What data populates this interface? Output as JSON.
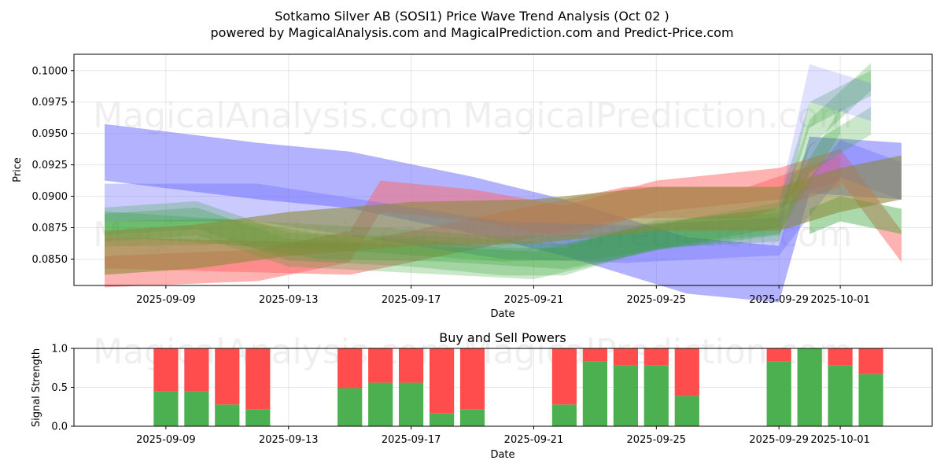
{
  "title_line1": "Sotkamo Silver AB (SOSI1) Price Wave Trend Analysis (Oct 02 )",
  "title_line2": "powered by MagicalAnalysis.com and MagicalPrediction.com and Predict-Price.com",
  "watermarks": [
    "MagicalAnalysis.com",
    "MagicalPrediction.com"
  ],
  "colors": {
    "blue": "#6666ff",
    "green": "#2ca02c",
    "red": "#ff6666",
    "olive": "#8b8b3c",
    "buy": "#4caf50",
    "sell": "#ff4c4c"
  },
  "chart_data": [
    {
      "type": "area",
      "xlabel": "Date",
      "ylabel": "Price",
      "x_ticks": [
        "2025-09-09",
        "2025-09-13",
        "2025-09-17",
        "2025-09-21",
        "2025-09-25",
        "2025-09-29",
        "2025-10-01"
      ],
      "xlim": [
        "2025-09-06",
        "2025-10-04"
      ],
      "y_ticks": [
        "0.0850",
        "0.0875",
        "0.0900",
        "0.0925",
        "0.0950",
        "0.0975",
        "0.1000"
      ],
      "ylim": [
        0.0829,
        0.1013
      ],
      "grid": true,
      "bands": [
        {
          "color": "blue",
          "opacity": 0.5,
          "points": [
            [
              "2025-09-07",
              0.0935
            ],
            [
              "2025-09-12",
              0.092
            ],
            [
              "2025-09-15",
              0.0913
            ],
            [
              "2025-09-19",
              0.0893
            ],
            [
              "2025-09-22",
              0.0875
            ],
            [
              "2025-09-26",
              0.0845
            ],
            [
              "2025-09-29",
              0.0838
            ],
            [
              "2025-09-30",
              0.0925
            ],
            [
              "2025-10-03",
              0.092
            ]
          ],
          "width": 0.0045
        },
        {
          "color": "red",
          "opacity": 0.5,
          "points": [
            [
              "2025-09-07",
              0.084
            ],
            [
              "2025-09-12",
              0.0845
            ],
            [
              "2025-09-15",
              0.086
            ],
            [
              "2025-09-16",
              0.09
            ],
            [
              "2025-09-19",
              0.0893
            ],
            [
              "2025-09-22",
              0.088
            ],
            [
              "2025-09-25",
              0.09
            ],
            [
              "2025-09-29",
              0.091
            ],
            [
              "2025-10-01",
              0.0925
            ],
            [
              "2025-10-03",
              0.086
            ]
          ],
          "width": 0.0025
        },
        {
          "color": "red",
          "opacity": 0.5,
          "points": [
            [
              "2025-09-07",
              0.0855
            ],
            [
              "2025-09-15",
              0.085
            ],
            [
              "2025-09-19",
              0.087
            ],
            [
              "2025-09-24",
              0.0895
            ],
            [
              "2025-09-28",
              0.0895
            ],
            [
              "2025-10-01",
              0.092
            ]
          ],
          "width": 0.0025
        },
        {
          "color": "blue",
          "opacity": 0.35,
          "points": [
            [
              "2025-09-07",
              0.0895
            ],
            [
              "2025-09-12",
              0.0895
            ],
            [
              "2025-09-16",
              0.088
            ],
            [
              "2025-09-20",
              0.0865
            ],
            [
              "2025-09-24",
              0.0862
            ],
            [
              "2025-09-29",
              0.0868
            ],
            [
              "2025-10-01",
              0.093
            ],
            [
              "2025-10-03",
              0.0912
            ]
          ],
          "width": 0.003
        },
        {
          "color": "green",
          "opacity": 0.25,
          "points": [
            [
              "2025-09-07",
              0.088
            ],
            [
              "2025-09-10",
              0.0885
            ],
            [
              "2025-09-13",
              0.086
            ],
            [
              "2025-09-17",
              0.0855
            ],
            [
              "2025-09-20",
              0.0848
            ],
            [
              "2025-09-22",
              0.0848
            ],
            [
              "2025-09-25",
              0.087
            ],
            [
              "2025-09-29",
              0.0875
            ],
            [
              "2025-09-30",
              0.095
            ],
            [
              "2025-10-02",
              0.0995
            ]
          ],
          "width": 0.0022
        },
        {
          "color": "green",
          "opacity": 0.25,
          "points": [
            [
              "2025-09-07",
              0.0875
            ],
            [
              "2025-09-10",
              0.088
            ],
            [
              "2025-09-13",
              0.0855
            ],
            [
              "2025-09-17",
              0.085
            ],
            [
              "2025-09-21",
              0.0845
            ],
            [
              "2025-09-25",
              0.0868
            ],
            [
              "2025-09-29",
              0.088
            ],
            [
              "2025-09-30",
              0.093
            ],
            [
              "2025-10-02",
              0.096
            ]
          ],
          "width": 0.0022
        },
        {
          "color": "green",
          "opacity": 0.25,
          "points": [
            [
              "2025-09-07",
              0.087
            ],
            [
              "2025-09-11",
              0.0872
            ],
            [
              "2025-09-14",
              0.086
            ],
            [
              "2025-09-18",
              0.0858
            ],
            [
              "2025-09-22",
              0.0852
            ],
            [
              "2025-09-26",
              0.0872
            ],
            [
              "2025-09-29",
              0.0885
            ],
            [
              "2025-09-30",
              0.0965
            ],
            [
              "2025-10-02",
              0.099
            ]
          ],
          "width": 0.002
        },
        {
          "color": "green",
          "opacity": 0.25,
          "points": [
            [
              "2025-09-07",
              0.0878
            ],
            [
              "2025-09-12",
              0.087
            ],
            [
              "2025-09-16",
              0.0865
            ],
            [
              "2025-09-20",
              0.0858
            ],
            [
              "2025-09-23",
              0.086
            ],
            [
              "2025-09-27",
              0.0875
            ],
            [
              "2025-09-29",
              0.088
            ],
            [
              "2025-10-01",
              0.096
            ]
          ],
          "width": 0.002
        },
        {
          "color": "blue",
          "opacity": 0.2,
          "points": [
            [
              "2025-09-29",
              0.088
            ],
            [
              "2025-09-30",
              0.099
            ],
            [
              "2025-10-02",
              0.0975
            ]
          ],
          "width": 0.003
        },
        {
          "color": "green",
          "opacity": 0.4,
          "points": [
            [
              "2025-09-30",
              0.088
            ],
            [
              "2025-10-01",
              0.089
            ],
            [
              "2025-10-03",
              0.088
            ]
          ],
          "width": 0.002
        },
        {
          "color": "olive",
          "opacity": 0.6,
          "points": [
            [
              "2025-09-07",
              0.0855
            ],
            [
              "2025-09-10",
              0.086
            ],
            [
              "2025-09-13",
              0.087
            ],
            [
              "2025-09-17",
              0.0878
            ],
            [
              "2025-09-21",
              0.088
            ],
            [
              "2025-09-25",
              0.089
            ],
            [
              "2025-09-29",
              0.089
            ],
            [
              "2025-10-01",
              0.0905
            ],
            [
              "2025-10-03",
              0.0915
            ]
          ],
          "width": 0.0035
        }
      ]
    },
    {
      "type": "bar",
      "title": "Buy and Sell Powers",
      "xlabel": "Date",
      "ylabel": "Signal Strength",
      "x_ticks": [
        "2025-09-09",
        "2025-09-13",
        "2025-09-17",
        "2025-09-21",
        "2025-09-25",
        "2025-09-29",
        "2025-10-01"
      ],
      "xlim": [
        "2025-09-06",
        "2025-10-04"
      ],
      "y_ticks": [
        "0.0",
        "0.5",
        "1.0"
      ],
      "ylim": [
        0,
        1
      ],
      "dates": [
        "2025-09-09",
        "2025-09-10",
        "2025-09-11",
        "2025-09-12",
        "2025-09-15",
        "2025-09-16",
        "2025-09-17",
        "2025-09-18",
        "2025-09-19",
        "2025-09-22",
        "2025-09-23",
        "2025-09-24",
        "2025-09-25",
        "2025-09-26",
        "2025-09-29",
        "2025-09-30",
        "2025-10-01",
        "2025-10-02"
      ],
      "series": [
        {
          "name": "Buy",
          "color": "buy",
          "values": [
            0.45,
            0.45,
            0.28,
            0.22,
            0.49,
            0.56,
            0.56,
            0.17,
            0.22,
            0.28,
            0.83,
            0.78,
            0.78,
            0.39,
            0.83,
            1.0,
            0.78,
            0.67
          ]
        },
        {
          "name": "Sell",
          "color": "sell",
          "values": [
            0.55,
            0.55,
            0.72,
            0.78,
            0.51,
            0.44,
            0.44,
            0.83,
            0.78,
            0.72,
            0.17,
            0.22,
            0.22,
            0.61,
            0.17,
            0.0,
            0.22,
            0.33
          ]
        }
      ]
    }
  ]
}
